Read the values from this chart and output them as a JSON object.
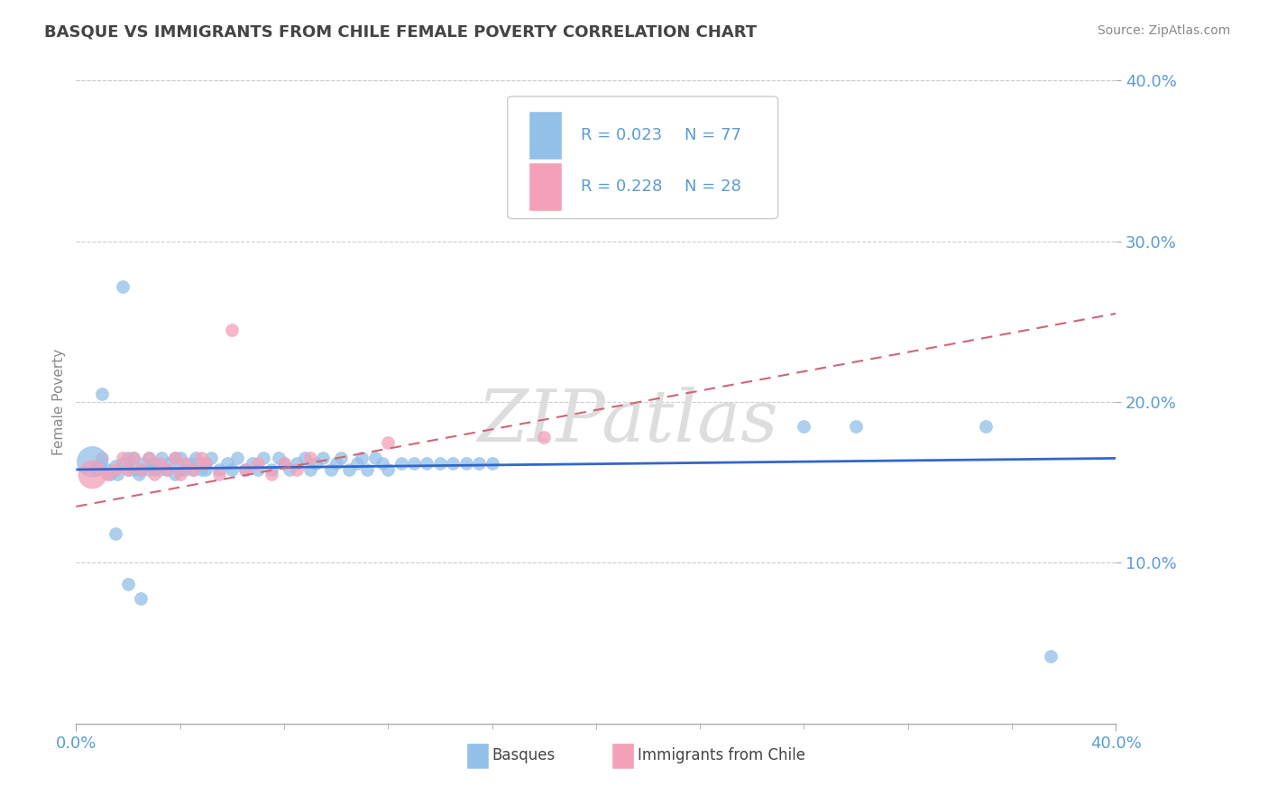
{
  "title": "BASQUE VS IMMIGRANTS FROM CHILE FEMALE POVERTY CORRELATION CHART",
  "source": "Source: ZipAtlas.com",
  "ylabel": "Female Poverty",
  "xlim": [
    0.0,
    0.4
  ],
  "ylim": [
    0.0,
    0.4
  ],
  "yticks": [
    0.1,
    0.2,
    0.3,
    0.4
  ],
  "ytick_labels": [
    "10.0%",
    "20.0%",
    "30.0%",
    "40.0%"
  ],
  "xtick_left": "0.0%",
  "xtick_right": "40.0%",
  "legend_r1": "R = 0.023",
  "legend_n1": "N = 77",
  "legend_r2": "R = 0.228",
  "legend_n2": "N = 28",
  "basque_color": "#92C0E8",
  "chile_color": "#F4A0B8",
  "basque_line_color": "#3366CC",
  "chile_line_color": "#CC6677",
  "watermark": "ZIPatlas",
  "background_color": "#FFFFFF",
  "grid_color": "#CCCCCC",
  "basque_line_x": [
    0.0,
    0.4
  ],
  "basque_line_y": [
    0.158,
    0.165
  ],
  "chile_line_x": [
    0.0,
    0.4
  ],
  "chile_line_y": [
    0.135,
    0.255
  ],
  "basque_x": [
    0.008,
    0.01,
    0.012,
    0.013,
    0.015,
    0.016,
    0.018,
    0.018,
    0.02,
    0.02,
    0.022,
    0.022,
    0.024,
    0.025,
    0.026,
    0.028,
    0.028,
    0.03,
    0.03,
    0.032,
    0.033,
    0.035,
    0.036,
    0.038,
    0.038,
    0.04,
    0.04,
    0.042,
    0.044,
    0.045,
    0.046,
    0.048,
    0.05,
    0.05,
    0.052,
    0.055,
    0.058,
    0.06,
    0.062,
    0.065,
    0.068,
    0.07,
    0.072,
    0.075,
    0.078,
    0.08,
    0.082,
    0.085,
    0.088,
    0.09,
    0.092,
    0.095,
    0.098,
    0.1,
    0.102,
    0.105,
    0.108,
    0.11,
    0.112,
    0.115,
    0.118,
    0.12,
    0.125,
    0.13,
    0.135,
    0.14,
    0.145,
    0.15,
    0.155,
    0.16,
    0.015,
    0.02,
    0.025,
    0.28,
    0.3,
    0.375,
    0.35
  ],
  "basque_y": [
    0.16,
    0.205,
    0.158,
    0.155,
    0.16,
    0.155,
    0.162,
    0.272,
    0.158,
    0.165,
    0.158,
    0.165,
    0.155,
    0.158,
    0.162,
    0.158,
    0.165,
    0.158,
    0.162,
    0.158,
    0.165,
    0.158,
    0.162,
    0.155,
    0.165,
    0.158,
    0.165,
    0.158,
    0.162,
    0.158,
    0.165,
    0.158,
    0.158,
    0.162,
    0.165,
    0.158,
    0.162,
    0.158,
    0.165,
    0.158,
    0.162,
    0.158,
    0.165,
    0.158,
    0.165,
    0.162,
    0.158,
    0.162,
    0.165,
    0.158,
    0.162,
    0.165,
    0.158,
    0.162,
    0.165,
    0.158,
    0.162,
    0.165,
    0.158,
    0.165,
    0.162,
    0.158,
    0.162,
    0.162,
    0.162,
    0.162,
    0.162,
    0.162,
    0.162,
    0.162,
    0.118,
    0.087,
    0.078,
    0.185,
    0.185,
    0.042,
    0.185
  ],
  "basque_sizes": [
    80,
    80,
    80,
    80,
    80,
    80,
    80,
    80,
    80,
    80,
    80,
    80,
    80,
    80,
    80,
    200,
    80,
    80,
    80,
    80,
    80,
    80,
    80,
    80,
    80,
    80,
    80,
    80,
    80,
    80,
    80,
    80,
    80,
    80,
    80,
    80,
    80,
    80,
    80,
    80,
    80,
    80,
    80,
    80,
    80,
    80,
    80,
    80,
    80,
    80,
    80,
    80,
    80,
    80,
    80,
    80,
    80,
    80,
    80,
    80,
    80,
    80,
    80,
    80,
    80,
    80,
    80,
    80,
    80,
    80,
    80,
    80,
    80,
    80,
    80,
    80,
    80
  ],
  "chile_x": [
    0.008,
    0.01,
    0.012,
    0.015,
    0.018,
    0.02,
    0.022,
    0.025,
    0.028,
    0.03,
    0.032,
    0.035,
    0.038,
    0.04,
    0.042,
    0.045,
    0.048,
    0.05,
    0.055,
    0.06,
    0.065,
    0.07,
    0.075,
    0.08,
    0.085,
    0.09,
    0.12,
    0.18
  ],
  "chile_y": [
    0.158,
    0.165,
    0.155,
    0.158,
    0.165,
    0.158,
    0.165,
    0.158,
    0.165,
    0.155,
    0.162,
    0.158,
    0.165,
    0.155,
    0.162,
    0.158,
    0.165,
    0.162,
    0.155,
    0.245,
    0.158,
    0.162,
    0.155,
    0.162,
    0.158,
    0.165,
    0.175,
    0.178
  ],
  "chile_sizes": [
    200,
    80,
    80,
    80,
    80,
    80,
    80,
    80,
    80,
    80,
    80,
    80,
    80,
    80,
    80,
    80,
    80,
    80,
    80,
    80,
    80,
    80,
    80,
    80,
    80,
    80,
    80,
    80
  ]
}
